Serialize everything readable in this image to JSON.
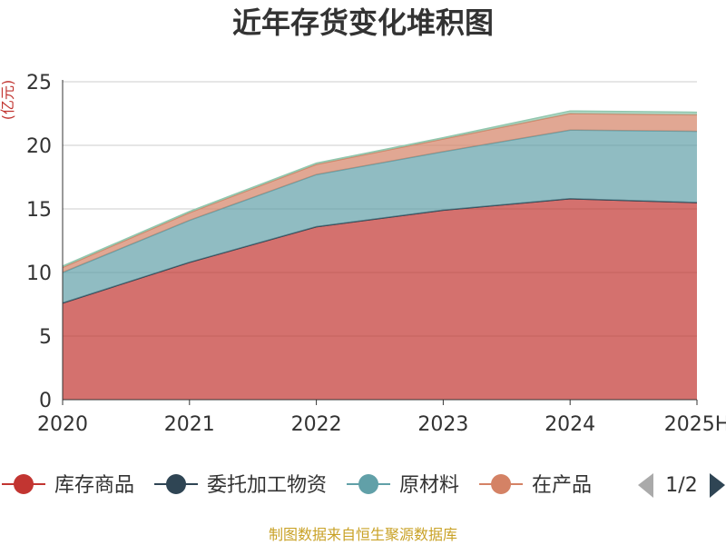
{
  "chart_data": {
    "type": "area",
    "stacked": true,
    "title": "近年存货变化堆积图",
    "ylabel": "(亿元)",
    "categories": [
      "2020",
      "2021",
      "2022",
      "2023",
      "2024",
      "2025H"
    ],
    "ylim": [
      0,
      25
    ],
    "yticks": [
      "0",
      "5",
      "10",
      "15",
      "20",
      "25"
    ],
    "grid": true,
    "series": [
      {
        "name": "库存商品",
        "color": "#c23531",
        "values": [
          7.6,
          10.8,
          13.6,
          14.9,
          15.8,
          15.5
        ]
      },
      {
        "name": "委托加工物资",
        "color": "#2f4554",
        "values": [
          0.0,
          0.0,
          0.0,
          0.0,
          0.0,
          0.0
        ]
      },
      {
        "name": "原材料",
        "color": "#61a0a8",
        "values": [
          2.4,
          3.3,
          4.1,
          4.6,
          5.4,
          5.6
        ]
      },
      {
        "name": "在产品",
        "color": "#d48265",
        "values": [
          0.4,
          0.6,
          0.8,
          1.0,
          1.3,
          1.3
        ]
      },
      {
        "name": "",
        "color": "#91c7ae",
        "values": [
          0.1,
          0.1,
          0.1,
          0.1,
          0.2,
          0.2
        ]
      }
    ],
    "legend": {
      "position": "bottom",
      "items": [
        "库存商品",
        "委托加工物资",
        "原材料",
        "在产品"
      ],
      "page": "1/2"
    }
  },
  "footer": {
    "source": "制图数据来自恒生聚源数据库"
  }
}
